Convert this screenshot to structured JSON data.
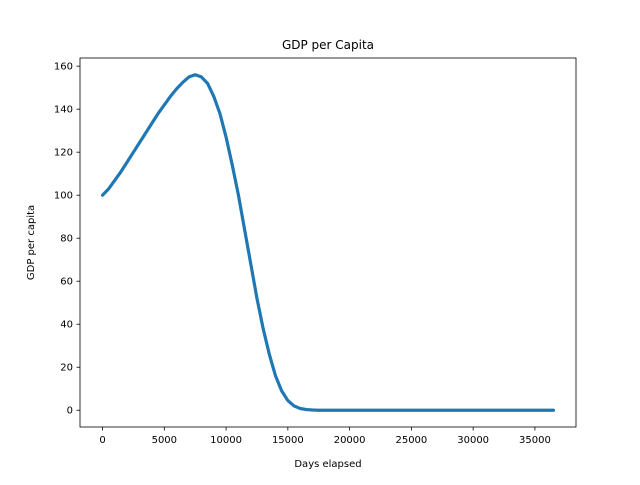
{
  "chart_data": {
    "type": "line",
    "title": "GDP per Capita",
    "xlabel": "Days elapsed",
    "ylabel": "GDP per capita",
    "xlim": [
      -1825,
      38325
    ],
    "ylim": [
      -7.8,
      163.8
    ],
    "x_ticks": [
      0,
      5000,
      10000,
      15000,
      20000,
      25000,
      30000,
      35000
    ],
    "x_tick_labels": [
      "0",
      "5000",
      "10000",
      "15000",
      "20000",
      "25000",
      "30000",
      "35000"
    ],
    "y_ticks": [
      0,
      20,
      40,
      60,
      80,
      100,
      120,
      140,
      160
    ],
    "y_tick_labels": [
      "0",
      "20",
      "40",
      "60",
      "80",
      "100",
      "120",
      "140",
      "160"
    ],
    "grid": false,
    "series": [
      {
        "color": "#1f77b4",
        "x": [
          0,
          500,
          1000,
          1500,
          2000,
          2500,
          3000,
          3500,
          4000,
          4500,
          5000,
          5500,
          6000,
          6500,
          7000,
          7500,
          8000,
          8500,
          9000,
          9500,
          10000,
          10500,
          11000,
          11500,
          12000,
          12500,
          13000,
          13500,
          14000,
          14500,
          15000,
          15500,
          16000,
          16500,
          17000,
          17500,
          18000,
          20000,
          25000,
          30000,
          36500
        ],
        "values": [
          100,
          103,
          107,
          111,
          115.5,
          120,
          124.5,
          129,
          133.5,
          138,
          142,
          146,
          149.5,
          152.5,
          155,
          156,
          155,
          152,
          146,
          138,
          127,
          114,
          100,
          84,
          68,
          52,
          38,
          26,
          16,
          9,
          4.5,
          2,
          0.8,
          0.3,
          0.1,
          0,
          0,
          0,
          0,
          0,
          0
        ]
      }
    ]
  }
}
